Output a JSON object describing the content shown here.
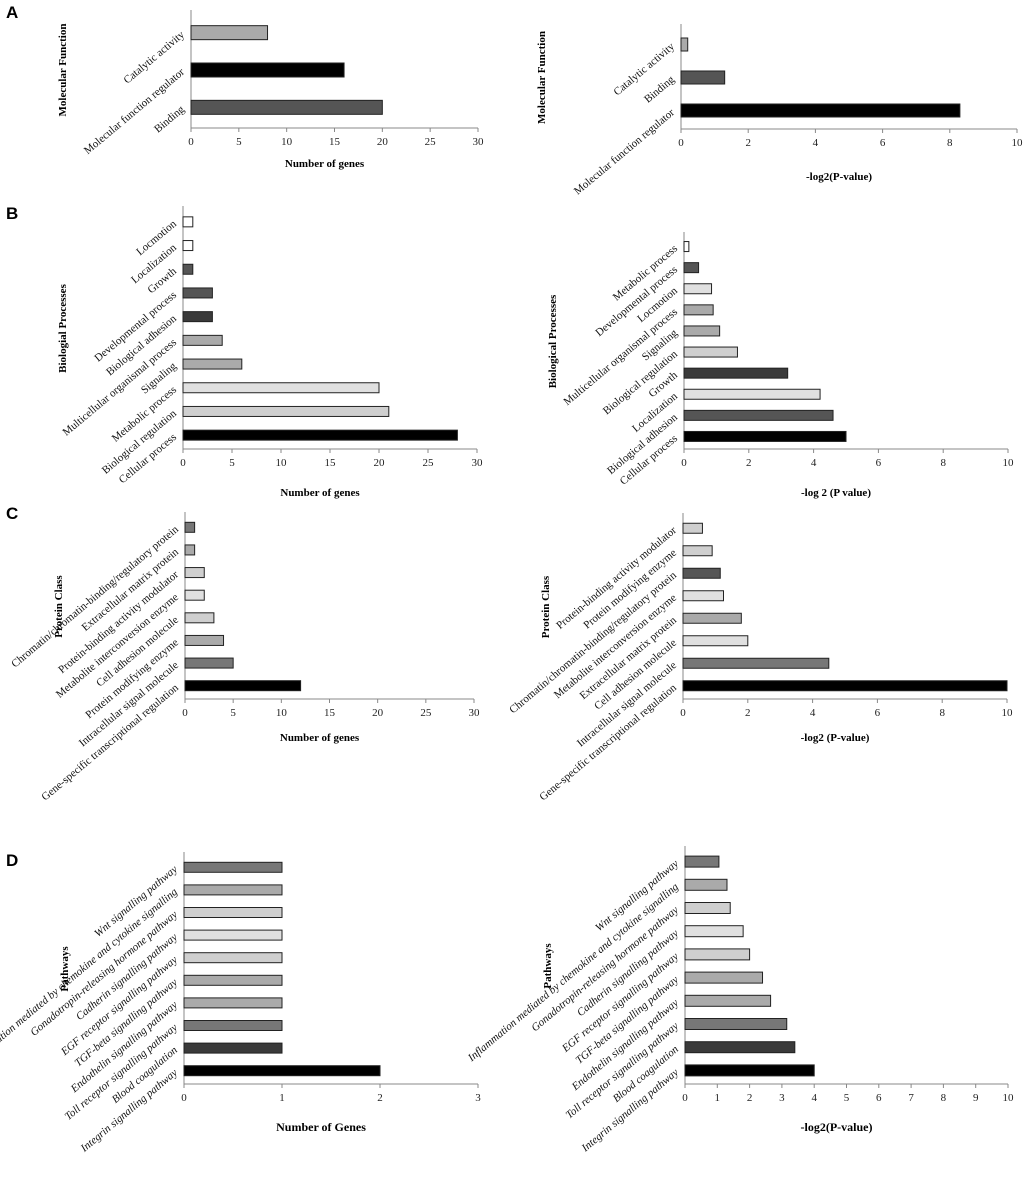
{
  "panel_labels": [
    "A",
    "B",
    "C",
    "D"
  ],
  "colors": {
    "black": "#000000",
    "dark": "#555555",
    "darker": "#3a3a3a",
    "mid": "#aaaaaa",
    "light": "#cfcfcf",
    "lighter": "#e0e0e0",
    "white": "#ffffff",
    "muted": "#777777"
  },
  "chart_data": [
    {
      "id": "A-left",
      "panel": "A",
      "type": "bar",
      "orientation": "horizontal",
      "ylabel": "Molecular Function",
      "xlabel": "Number of genes",
      "xlim": [
        0,
        30
      ],
      "xticks": [
        0,
        5,
        10,
        15,
        20,
        25,
        30
      ],
      "categories": [
        "Catalytic activity",
        "Molecular function regulator",
        "Binding"
      ],
      "values": [
        8,
        16,
        20
      ],
      "colors": [
        "#aaaaaa",
        "#000000",
        "#555555"
      ]
    },
    {
      "id": "A-right",
      "panel": "A",
      "type": "bar",
      "orientation": "horizontal",
      "ylabel": "Molecular Function",
      "xlabel": "-log2(P-value)",
      "xlim": [
        0,
        10
      ],
      "xticks": [
        0,
        2,
        4,
        6,
        8,
        10
      ],
      "categories": [
        "Catalytic activity",
        "Binding",
        "Molecular function regulator"
      ],
      "values": [
        0.2,
        1.3,
        8.3
      ],
      "colors": [
        "#aaaaaa",
        "#555555",
        "#000000"
      ]
    },
    {
      "id": "B-left",
      "panel": "B",
      "type": "bar",
      "orientation": "horizontal",
      "ylabel": "Biologial Processes",
      "xlabel": "Number of genes",
      "xlim": [
        0,
        30
      ],
      "xticks": [
        0,
        5,
        10,
        15,
        20,
        25,
        30
      ],
      "categories": [
        "Locmotion",
        "Localization",
        "Growth",
        "Developmental process",
        "Biological adhesion",
        "Multicellular organismal process",
        "Signaling",
        "Metabolic process",
        "Biological regulation",
        "Cellular process"
      ],
      "values": [
        1,
        1,
        1,
        3,
        3,
        4,
        6,
        20,
        21,
        28
      ],
      "colors": [
        "#ffffff",
        "#ffffff",
        "#555555",
        "#555555",
        "#3a3a3a",
        "#aaaaaa",
        "#aaaaaa",
        "#e0e0e0",
        "#cfcfcf",
        "#000000"
      ]
    },
    {
      "id": "B-right",
      "panel": "B",
      "type": "bar",
      "orientation": "horizontal",
      "ylabel": "Biological Processes",
      "xlabel": "-log 2 (P value)",
      "xlim": [
        0,
        10
      ],
      "xticks": [
        0,
        2,
        4,
        6,
        8,
        10
      ],
      "categories": [
        "Metabolic process",
        "Developmental process",
        "Locmotion",
        "Multicellular organismal process",
        "Signaling",
        "Biological regulation",
        "Growth",
        "Localization",
        "Biological adhesion",
        "Cellular process"
      ],
      "values": [
        0.15,
        0.45,
        0.85,
        0.9,
        1.1,
        1.65,
        3.2,
        4.2,
        4.6,
        5.0
      ],
      "colors": [
        "#ffffff",
        "#555555",
        "#e0e0e0",
        "#aaaaaa",
        "#aaaaaa",
        "#cfcfcf",
        "#3a3a3a",
        "#e0e0e0",
        "#555555",
        "#000000"
      ]
    },
    {
      "id": "C-left",
      "panel": "C",
      "type": "bar",
      "orientation": "horizontal",
      "ylabel": "Protein Class",
      "xlabel": "Number of genes",
      "xlim": [
        0,
        30
      ],
      "xticks": [
        0,
        5,
        10,
        15,
        20,
        25,
        30
      ],
      "categories": [
        "Chromatin/chromatin-binding/regulatory protein",
        "Extracellular matrix protein",
        "Protein-binding activity modulator",
        "Metabolite interconversion enzyme",
        "Cell adhesion molecule",
        "Protein modifying enzyme",
        "Intracellular signal molecule",
        "Gene-specific transcriptional regulation"
      ],
      "values": [
        1,
        1,
        2,
        2,
        3,
        4,
        5,
        12
      ],
      "colors": [
        "#777777",
        "#aaaaaa",
        "#cfcfcf",
        "#e0e0e0",
        "#cfcfcf",
        "#aaaaaa",
        "#777777",
        "#000000"
      ]
    },
    {
      "id": "C-right",
      "panel": "C",
      "type": "bar",
      "orientation": "horizontal",
      "ylabel": "Protein Class",
      "xlabel": "-log2 (P-value)",
      "xlim": [
        0,
        10
      ],
      "xticks": [
        0,
        2,
        4,
        6,
        8,
        10
      ],
      "categories": [
        "Protein-binding activity modulator",
        "Protein modifying enzyme",
        "Chromatin/chromatin-binding/regulatory protein",
        "Metabolite interconversion enzyme",
        "Extracellular matrix protein",
        "Cell adhesion molecule",
        "Intracellular signal molecule",
        "Gene-specific transcriptional regulation"
      ],
      "values": [
        0.6,
        0.9,
        1.15,
        1.25,
        1.8,
        2.0,
        4.5,
        10.0
      ],
      "colors": [
        "#cfcfcf",
        "#cfcfcf",
        "#555555",
        "#e0e0e0",
        "#aaaaaa",
        "#e0e0e0",
        "#777777",
        "#000000"
      ]
    },
    {
      "id": "D-left",
      "panel": "D",
      "type": "bar",
      "orientation": "horizontal",
      "ylabel": "Pathways",
      "xlabel": "Number of Genes",
      "xlim": [
        0,
        3
      ],
      "xticks": [
        0,
        1,
        2,
        3
      ],
      "categories": [
        "Wnt signalling pathway",
        "Inflammation mediated by chemokine and cytokine signalling",
        "Gonadotropin-releasing hormone pathway",
        "Cadherin signalling pathway",
        "EGF receptor signalling pathway",
        "TGF-beta signalling pathway",
        "Endothelin signalling pathway",
        "Toll receptor signalling pathway",
        "Blood coagulation",
        "Integrin signalling pathway"
      ],
      "values": [
        1,
        1,
        1,
        1,
        1,
        1,
        1,
        1,
        1,
        2
      ],
      "colors": [
        "#777777",
        "#aaaaaa",
        "#cfcfcf",
        "#e0e0e0",
        "#cfcfcf",
        "#aaaaaa",
        "#aaaaaa",
        "#777777",
        "#3a3a3a",
        "#000000"
      ]
    },
    {
      "id": "D-right",
      "panel": "D",
      "type": "bar",
      "orientation": "horizontal",
      "ylabel": "Pathways",
      "xlabel": "-log2(P-value)",
      "xlim": [
        0,
        10
      ],
      "xticks": [
        0,
        1,
        2,
        3,
        4,
        5,
        6,
        7,
        8,
        9,
        10
      ],
      "categories": [
        "Wnt signalling pathway",
        "Inflammation mediated by chemokine and cytokine signalling",
        "Gonadotropin-releasing hormone pathway",
        "Cadherin signalling pathway",
        "EGF receptor signalling pathway",
        "TGF-beta signalling pathway",
        "Endothelin signalling pathway",
        "Toll receptor signalling pathway",
        "Blood coagulation",
        "Integrin signalling pathway"
      ],
      "values": [
        1.05,
        1.3,
        1.4,
        1.8,
        2.0,
        2.4,
        2.65,
        3.15,
        3.4,
        4.0
      ],
      "colors": [
        "#777777",
        "#aaaaaa",
        "#cfcfcf",
        "#e0e0e0",
        "#cfcfcf",
        "#aaaaaa",
        "#aaaaaa",
        "#777777",
        "#3a3a3a",
        "#000000"
      ]
    }
  ]
}
